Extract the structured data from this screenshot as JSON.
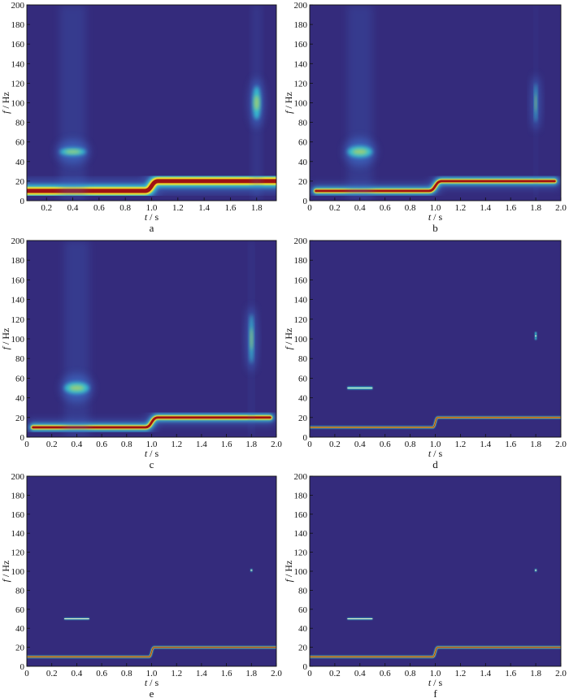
{
  "figure": {
    "colors": {
      "background": "#342b7c",
      "ridge_core": "#a01212",
      "ridge_mid": "#f2dd2a",
      "ridge_outer": "#36c8d4",
      "glow": "#3f73cf"
    }
  },
  "chart_data": [
    {
      "type": "heatmap",
      "panel_label": "a",
      "xlabel_var": "t",
      "xlabel_unit": " / s",
      "ylabel_var": "f",
      "ylabel_unit": " / Hz",
      "xlim": [
        0.05,
        1.95
      ],
      "ylim": [
        0,
        200
      ],
      "x_ticks": [
        "0.2",
        "0.4",
        "0.6",
        "0.8",
        "1.0",
        "1.2",
        "1.4",
        "1.6",
        "1.8"
      ],
      "x_tick_values": [
        0.2,
        0.4,
        0.6,
        0.8,
        1.0,
        1.2,
        1.4,
        1.6,
        1.8
      ],
      "y_ticks": [
        "0",
        "20",
        "40",
        "60",
        "80",
        "100",
        "120",
        "140",
        "160",
        "180",
        "200"
      ],
      "y_tick_values": [
        0,
        20,
        40,
        60,
        80,
        100,
        120,
        140,
        160,
        180,
        200
      ],
      "style": "stft",
      "ridges": [
        {
          "t_start": 0.05,
          "t_end": 0.95,
          "f": 10,
          "width": 7
        },
        {
          "t_start": 1.05,
          "t_end": 1.95,
          "f": 20,
          "width": 7
        }
      ],
      "transition": {
        "t_start": 0.95,
        "t_end": 1.05
      },
      "bursts": [
        {
          "t_center": 0.4,
          "duration": 0.2,
          "f": 50,
          "height": 8
        },
        {
          "t_center": 1.8,
          "duration": 0.06,
          "f": 100,
          "height": 34
        }
      ]
    },
    {
      "type": "heatmap",
      "panel_label": "b",
      "xlabel_var": "t",
      "xlabel_unit": " / s",
      "ylabel_var": "f",
      "ylabel_unit": " / Hz",
      "xlim": [
        0,
        2.0
      ],
      "ylim": [
        0,
        200
      ],
      "x_ticks": [
        "0",
        "0.2",
        "0.4",
        "0.6",
        "0.8",
        "1.0",
        "1.2",
        "1.4",
        "1.6",
        "1.8",
        "2.0"
      ],
      "x_tick_values": [
        0,
        0.2,
        0.4,
        0.6,
        0.8,
        1.0,
        1.2,
        1.4,
        1.6,
        1.8,
        2.0
      ],
      "y_ticks": [
        "0",
        "20",
        "40",
        "60",
        "80",
        "100",
        "120",
        "140",
        "160",
        "180",
        "200"
      ],
      "y_tick_values": [
        0,
        20,
        40,
        60,
        80,
        100,
        120,
        140,
        160,
        180,
        200
      ],
      "style": "wavelet",
      "ridges": [
        {
          "t_start": 0.05,
          "t_end": 0.95,
          "f": 10,
          "width": 4
        },
        {
          "t_start": 1.05,
          "t_end": 1.95,
          "f": 20,
          "width": 5
        }
      ],
      "transition": {
        "t_start": 0.95,
        "t_end": 1.05
      },
      "bursts": [
        {
          "t_center": 0.4,
          "duration": 0.2,
          "f": 50,
          "height": 12
        },
        {
          "t_center": 1.8,
          "duration": 0.02,
          "f": 100,
          "height": 40
        }
      ]
    },
    {
      "type": "heatmap",
      "panel_label": "c",
      "xlabel_var": "t",
      "xlabel_unit": " / s",
      "ylabel_var": "f",
      "ylabel_unit": " / Hz",
      "xlim": [
        0,
        2.0
      ],
      "ylim": [
        0,
        200
      ],
      "x_ticks": [
        "0",
        "0.2",
        "0.4",
        "0.6",
        "0.8",
        "1.0",
        "1.2",
        "1.4",
        "1.6",
        "1.8",
        "2.0"
      ],
      "x_tick_values": [
        0,
        0.2,
        0.4,
        0.6,
        0.8,
        1.0,
        1.2,
        1.4,
        1.6,
        1.8,
        2.0
      ],
      "y_ticks": [
        "0",
        "20",
        "40",
        "60",
        "80",
        "100",
        "120",
        "140",
        "160",
        "180",
        "200"
      ],
      "y_tick_values": [
        0,
        20,
        40,
        60,
        80,
        100,
        120,
        140,
        160,
        180,
        200
      ],
      "style": "wavelet",
      "ridges": [
        {
          "t_start": 0.05,
          "t_end": 0.95,
          "f": 10,
          "width": 4
        },
        {
          "t_start": 1.05,
          "t_end": 1.95,
          "f": 20,
          "width": 6
        }
      ],
      "transition": {
        "t_start": 0.95,
        "t_end": 1.05
      },
      "bursts": [
        {
          "t_center": 0.4,
          "duration": 0.2,
          "f": 50,
          "height": 12
        },
        {
          "t_center": 1.8,
          "duration": 0.03,
          "f": 100,
          "height": 50
        }
      ]
    },
    {
      "type": "heatmap",
      "panel_label": "d",
      "xlabel_var": "t",
      "xlabel_unit": " / s",
      "ylabel_var": "f",
      "ylabel_unit": " / Hz",
      "xlim": [
        0,
        2.0
      ],
      "ylim": [
        0,
        200
      ],
      "x_ticks": [
        "0",
        "0.2",
        "0.4",
        "0.6",
        "0.8",
        "1.0",
        "1.2",
        "1.4",
        "1.6",
        "1.8",
        "2.0"
      ],
      "x_tick_values": [
        0,
        0.2,
        0.4,
        0.6,
        0.8,
        1.0,
        1.2,
        1.4,
        1.6,
        1.8,
        2.0
      ],
      "y_ticks": [
        "0",
        "20",
        "40",
        "60",
        "80",
        "100",
        "120",
        "140",
        "160",
        "180",
        "200"
      ],
      "y_tick_values": [
        0,
        20,
        40,
        60,
        80,
        100,
        120,
        140,
        160,
        180,
        200
      ],
      "style": "sharp",
      "ridges": [
        {
          "t_start": 0.0,
          "t_end": 0.98,
          "f": 10,
          "width": 1.5
        },
        {
          "t_start": 1.02,
          "t_end": 2.0,
          "f": 20,
          "width": 1.5
        }
      ],
      "transition": {
        "t_start": 0.98,
        "t_end": 1.02
      },
      "bursts": [
        {
          "t_center": 0.4,
          "duration": 0.2,
          "f": 50,
          "height": 3
        },
        {
          "t_center": 1.8,
          "duration": 0.01,
          "f": 103,
          "height": 8
        }
      ]
    },
    {
      "type": "heatmap",
      "panel_label": "e",
      "xlabel_var": "t",
      "xlabel_unit": " / s",
      "ylabel_var": "f",
      "ylabel_unit": " / Hz",
      "xlim": [
        0,
        2.0
      ],
      "ylim": [
        0,
        200
      ],
      "x_ticks": [
        "0",
        "0.2",
        "0.4",
        "0.6",
        "0.8",
        "1.0",
        "1.2",
        "1.4",
        "1.6",
        "1.8",
        "2.0"
      ],
      "x_tick_values": [
        0,
        0.2,
        0.4,
        0.6,
        0.8,
        1.0,
        1.2,
        1.4,
        1.6,
        1.8,
        2.0
      ],
      "y_ticks": [
        "0",
        "20",
        "40",
        "60",
        "80",
        "100",
        "120",
        "140",
        "160",
        "180",
        "200"
      ],
      "y_tick_values": [
        0,
        20,
        40,
        60,
        80,
        100,
        120,
        140,
        160,
        180,
        200
      ],
      "style": "sharp",
      "ridges": [
        {
          "t_start": 0.0,
          "t_end": 0.98,
          "f": 10,
          "width": 1.5
        },
        {
          "t_start": 1.02,
          "t_end": 2.0,
          "f": 20,
          "width": 1.5
        }
      ],
      "transition": {
        "t_start": 0.98,
        "t_end": 1.02
      },
      "bursts": [
        {
          "t_center": 0.4,
          "duration": 0.2,
          "f": 50,
          "height": 2
        },
        {
          "t_center": 1.8,
          "duration": 0.01,
          "f": 101,
          "height": 3
        }
      ]
    },
    {
      "type": "heatmap",
      "panel_label": "f",
      "xlabel_var": "t",
      "xlabel_unit": " / s",
      "ylabel_var": "f",
      "ylabel_unit": " / Hz",
      "xlim": [
        0,
        2.0
      ],
      "ylim": [
        0,
        200
      ],
      "x_ticks": [
        "0",
        "0.2",
        "0.4",
        "0.6",
        "0.8",
        "1.0",
        "1.2",
        "1.4",
        "1.6",
        "1.8",
        "2.0"
      ],
      "x_tick_values": [
        0,
        0.2,
        0.4,
        0.6,
        0.8,
        1.0,
        1.2,
        1.4,
        1.6,
        1.8,
        2.0
      ],
      "y_ticks": [
        "0",
        "20",
        "40",
        "60",
        "80",
        "100",
        "120",
        "140",
        "160",
        "180",
        "200"
      ],
      "y_tick_values": [
        0,
        20,
        40,
        60,
        80,
        100,
        120,
        140,
        160,
        180,
        200
      ],
      "style": "sharp",
      "ridges": [
        {
          "t_start": 0.0,
          "t_end": 0.98,
          "f": 10,
          "width": 1.5
        },
        {
          "t_start": 1.02,
          "t_end": 2.0,
          "f": 20,
          "width": 1.5
        }
      ],
      "transition": {
        "t_start": 0.98,
        "t_end": 1.02
      },
      "bursts": [
        {
          "t_center": 0.4,
          "duration": 0.2,
          "f": 50,
          "height": 2
        },
        {
          "t_center": 1.8,
          "duration": 0.01,
          "f": 101,
          "height": 3
        }
      ]
    }
  ]
}
